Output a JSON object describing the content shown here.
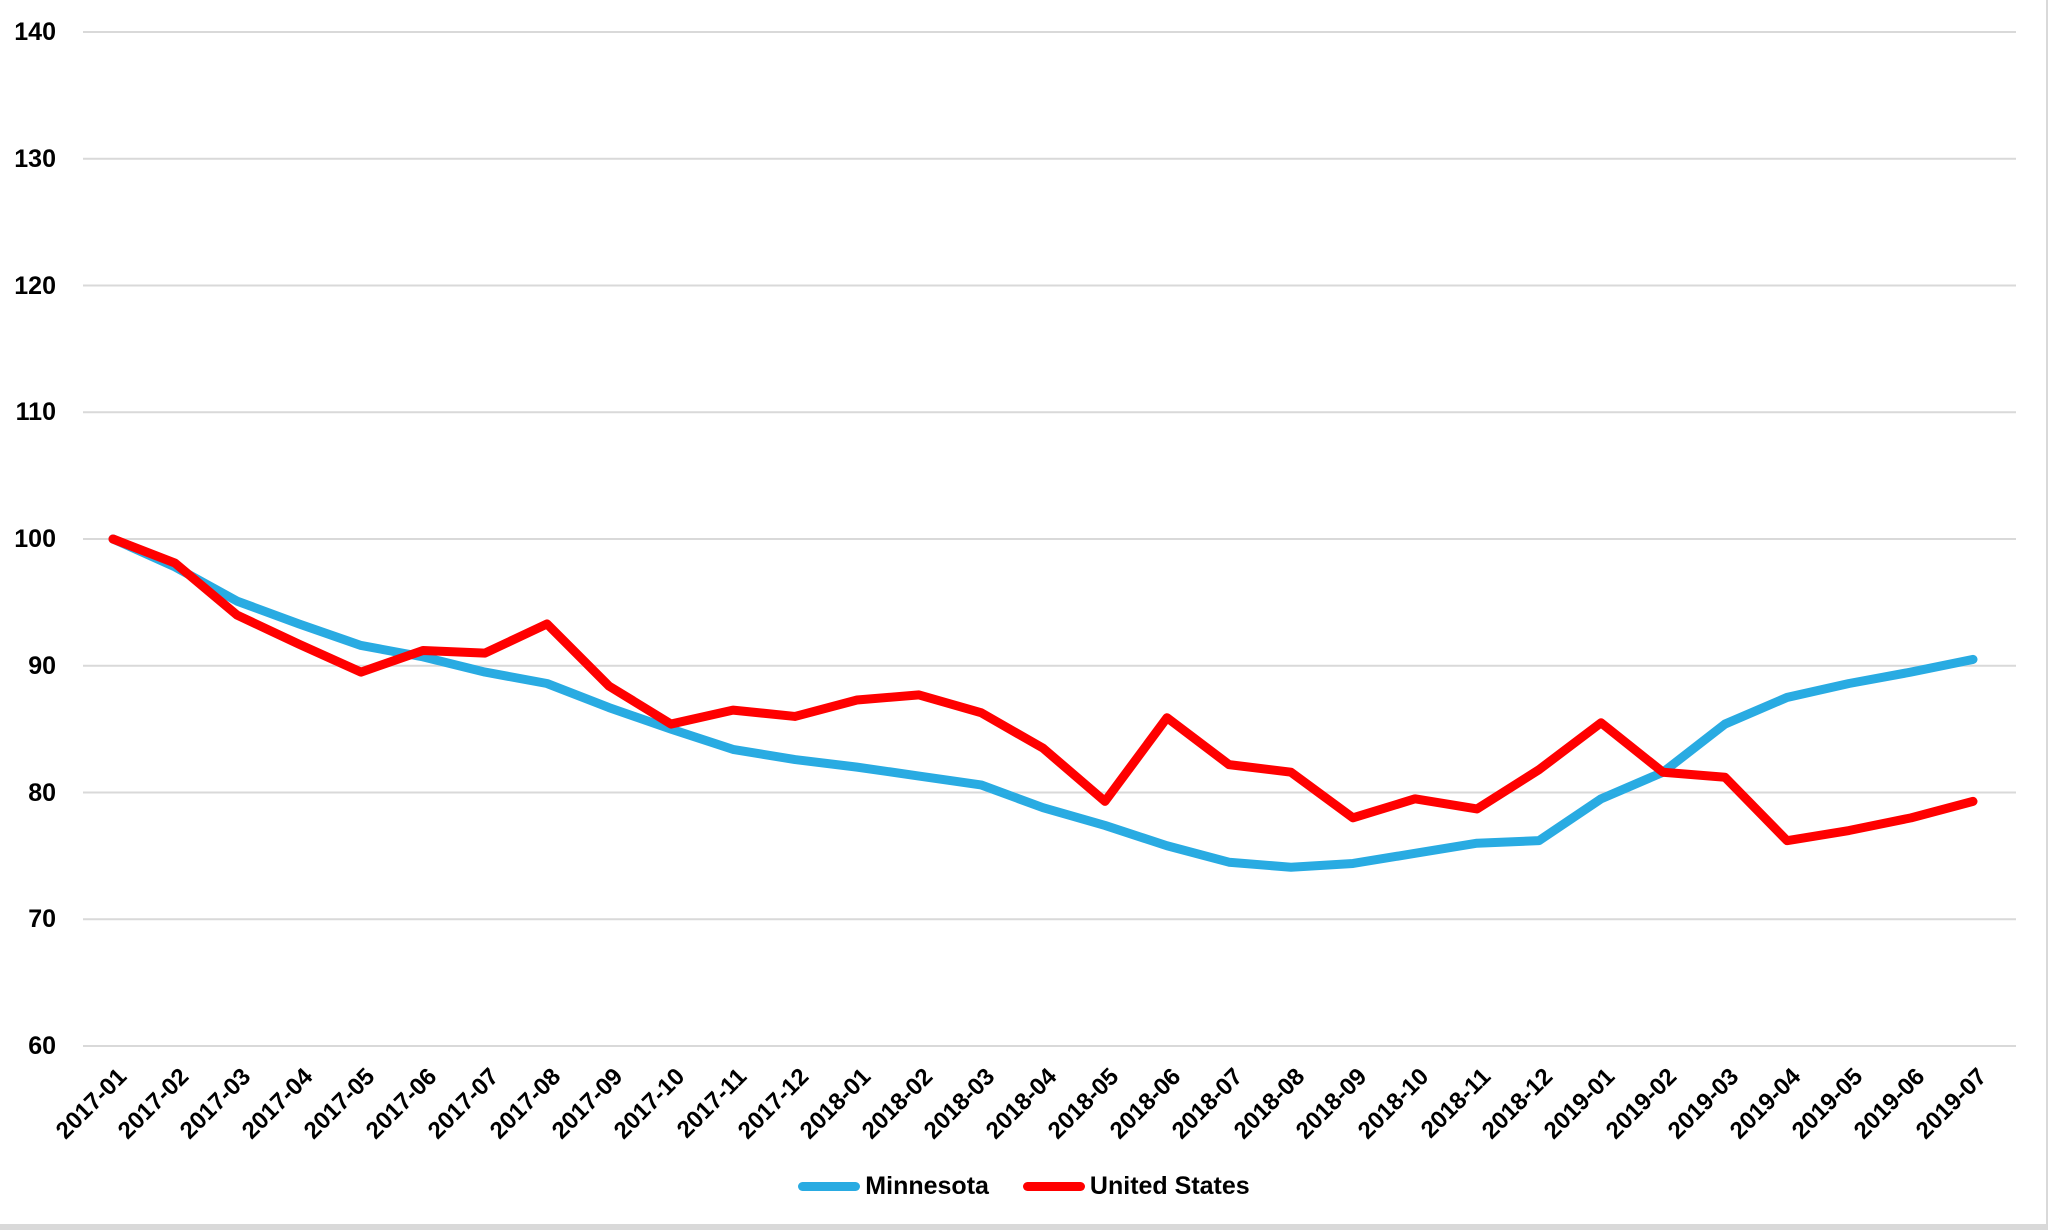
{
  "chart_data": {
    "type": "line",
    "title": "",
    "xlabel": "",
    "ylabel": "",
    "grid": true,
    "gridline_color": "#d9d9d9",
    "background_color": "#ffffff",
    "text_color": "#000000",
    "ylim": [
      60,
      140
    ],
    "y_ticks": [
      140,
      130,
      120,
      110,
      100,
      90,
      80,
      70,
      60
    ],
    "legend_position": "bottom-center",
    "categories": [
      "2017-01",
      "2017-02",
      "2017-03",
      "2017-04",
      "2017-05",
      "2017-06",
      "2017-07",
      "2017-08",
      "2017-09",
      "2017-10",
      "2017-11",
      "2017-12",
      "2018-01",
      "2018-02",
      "2018-03",
      "2018-04",
      "2018-05",
      "2018-06",
      "2018-07",
      "2018-08",
      "2018-09",
      "2018-10",
      "2018-11",
      "2018-12",
      "2019-01",
      "2019-02",
      "2019-03",
      "2019-04",
      "2019-05",
      "2019-06",
      "2019-07"
    ],
    "series": [
      {
        "name": "Minnesota",
        "color": "#29ABE2",
        "values": [
          100,
          97.8,
          95.1,
          93.3,
          91.6,
          90.7,
          89.5,
          88.6,
          86.7,
          85.0,
          83.4,
          82.6,
          82.0,
          81.3,
          80.6,
          78.8,
          77.4,
          75.8,
          74.5,
          74.1,
          74.4,
          75.2,
          76.0,
          76.2,
          79.5,
          81.6,
          85.4,
          87.5,
          88.6,
          89.5,
          90.5
        ]
      },
      {
        "name": "United States",
        "color": "#FF0000",
        "values": [
          100,
          98.1,
          94.0,
          91.7,
          89.5,
          91.2,
          91.0,
          93.3,
          88.4,
          85.4,
          86.5,
          86.0,
          87.3,
          87.7,
          86.3,
          83.5,
          79.3,
          85.9,
          82.2,
          81.6,
          78.0,
          79.5,
          78.7,
          81.8,
          85.5,
          81.6,
          81.2,
          76.2,
          77.0,
          78.0,
          79.3
        ]
      }
    ]
  }
}
